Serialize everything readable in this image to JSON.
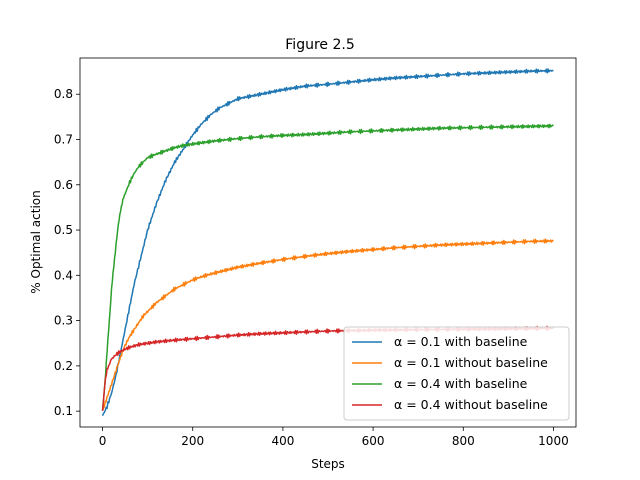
{
  "chart_data": {
    "type": "line",
    "title": "Figure 2.5",
    "xlabel": "Steps",
    "ylabel": "% Optimal action",
    "xlim": [
      -50,
      1050
    ],
    "ylim": [
      0.065,
      0.88
    ],
    "xticks": [
      0,
      200,
      400,
      600,
      800,
      1000
    ],
    "yticks": [
      0.1,
      0.2,
      0.3,
      0.4,
      0.5,
      0.6,
      0.7,
      0.8
    ],
    "xtick_labels": [
      "0",
      "200",
      "400",
      "600",
      "800",
      "1000"
    ],
    "ytick_labels": [
      "0.1",
      "0.2",
      "0.3",
      "0.4",
      "0.5",
      "0.6",
      "0.7",
      "0.8"
    ],
    "legend_position": "lower-right",
    "series": [
      {
        "name": "α = 0.1 with baseline",
        "color": "#1f77b4",
        "x": [
          0,
          10,
          20,
          30,
          40,
          50,
          60,
          70,
          80,
          90,
          100,
          120,
          140,
          160,
          180,
          200,
          220,
          240,
          260,
          280,
          300,
          350,
          400,
          450,
          500,
          550,
          600,
          650,
          700,
          750,
          800,
          850,
          900,
          950,
          1000
        ],
        "y": [
          0.09,
          0.11,
          0.14,
          0.18,
          0.23,
          0.28,
          0.33,
          0.38,
          0.42,
          0.46,
          0.5,
          0.56,
          0.61,
          0.65,
          0.68,
          0.71,
          0.735,
          0.755,
          0.77,
          0.78,
          0.79,
          0.8,
          0.81,
          0.818,
          0.822,
          0.827,
          0.832,
          0.836,
          0.839,
          0.842,
          0.845,
          0.847,
          0.849,
          0.851,
          0.852
        ]
      },
      {
        "name": "α = 0.1 without baseline",
        "color": "#ff7f0e",
        "x": [
          0,
          10,
          20,
          30,
          40,
          50,
          60,
          70,
          80,
          90,
          100,
          120,
          140,
          160,
          180,
          200,
          220,
          240,
          260,
          280,
          300,
          350,
          400,
          450,
          500,
          550,
          600,
          650,
          700,
          750,
          800,
          850,
          900,
          950,
          1000
        ],
        "y": [
          0.1,
          0.13,
          0.16,
          0.19,
          0.22,
          0.245,
          0.265,
          0.28,
          0.295,
          0.31,
          0.32,
          0.34,
          0.355,
          0.37,
          0.38,
          0.39,
          0.397,
          0.403,
          0.408,
          0.413,
          0.418,
          0.427,
          0.435,
          0.442,
          0.448,
          0.453,
          0.457,
          0.461,
          0.464,
          0.467,
          0.469,
          0.471,
          0.473,
          0.475,
          0.476
        ]
      },
      {
        "name": "α = 0.4 with baseline",
        "color": "#2ca02c",
        "x": [
          0,
          5,
          10,
          15,
          20,
          25,
          30,
          35,
          40,
          45,
          50,
          60,
          70,
          80,
          90,
          100,
          120,
          140,
          160,
          180,
          200,
          250,
          300,
          350,
          400,
          450,
          500,
          550,
          600,
          650,
          700,
          750,
          800,
          850,
          900,
          950,
          1000
        ],
        "y": [
          0.1,
          0.16,
          0.23,
          0.3,
          0.37,
          0.42,
          0.47,
          0.51,
          0.545,
          0.565,
          0.58,
          0.605,
          0.625,
          0.64,
          0.65,
          0.66,
          0.668,
          0.675,
          0.682,
          0.687,
          0.69,
          0.697,
          0.702,
          0.706,
          0.709,
          0.711,
          0.714,
          0.717,
          0.719,
          0.721,
          0.723,
          0.725,
          0.726,
          0.727,
          0.728,
          0.729,
          0.73
        ]
      },
      {
        "name": "α = 0.4 without baseline",
        "color": "#d62728",
        "x": [
          0,
          5,
          10,
          15,
          20,
          30,
          40,
          50,
          60,
          70,
          80,
          100,
          120,
          150,
          200,
          250,
          300,
          350,
          400,
          450,
          500,
          600,
          700,
          800,
          900,
          1000
        ],
        "y": [
          0.1,
          0.16,
          0.19,
          0.205,
          0.215,
          0.225,
          0.232,
          0.237,
          0.241,
          0.244,
          0.247,
          0.25,
          0.253,
          0.256,
          0.26,
          0.264,
          0.268,
          0.271,
          0.273,
          0.275,
          0.277,
          0.279,
          0.28,
          0.281,
          0.282,
          0.283
        ]
      }
    ]
  }
}
